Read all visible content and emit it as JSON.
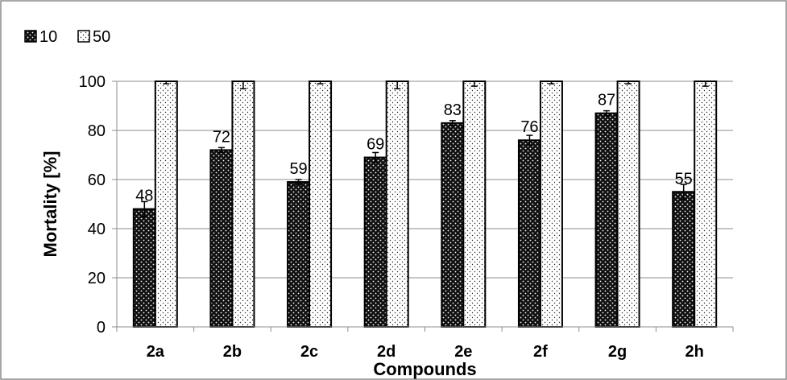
{
  "chart_data": {
    "type": "bar",
    "title": "",
    "xlabel": "Compounds",
    "ylabel": "Mortality [%]",
    "ylim": [
      0,
      100
    ],
    "yticks": [
      0,
      20,
      40,
      60,
      80,
      100
    ],
    "categories": [
      "2a",
      "2b",
      "2c",
      "2d",
      "2e",
      "2f",
      "2g",
      "2h"
    ],
    "series": [
      {
        "name": "10",
        "values": [
          48,
          72,
          59,
          69,
          83,
          76,
          87,
          55
        ],
        "errors": [
          3,
          1,
          1,
          2,
          1,
          2,
          1,
          3
        ],
        "data_labels": [
          "48",
          "72",
          "59",
          "69",
          "83",
          "76",
          "87",
          "55"
        ],
        "pattern": "dark-dotted"
      },
      {
        "name": "50",
        "values": [
          100,
          100,
          100,
          100,
          100,
          100,
          100,
          100
        ],
        "errors": [
          1,
          3,
          1,
          3,
          2,
          1,
          1,
          2
        ],
        "pattern": "light-dotted"
      }
    ],
    "legend": "top-left",
    "grid": true
  }
}
